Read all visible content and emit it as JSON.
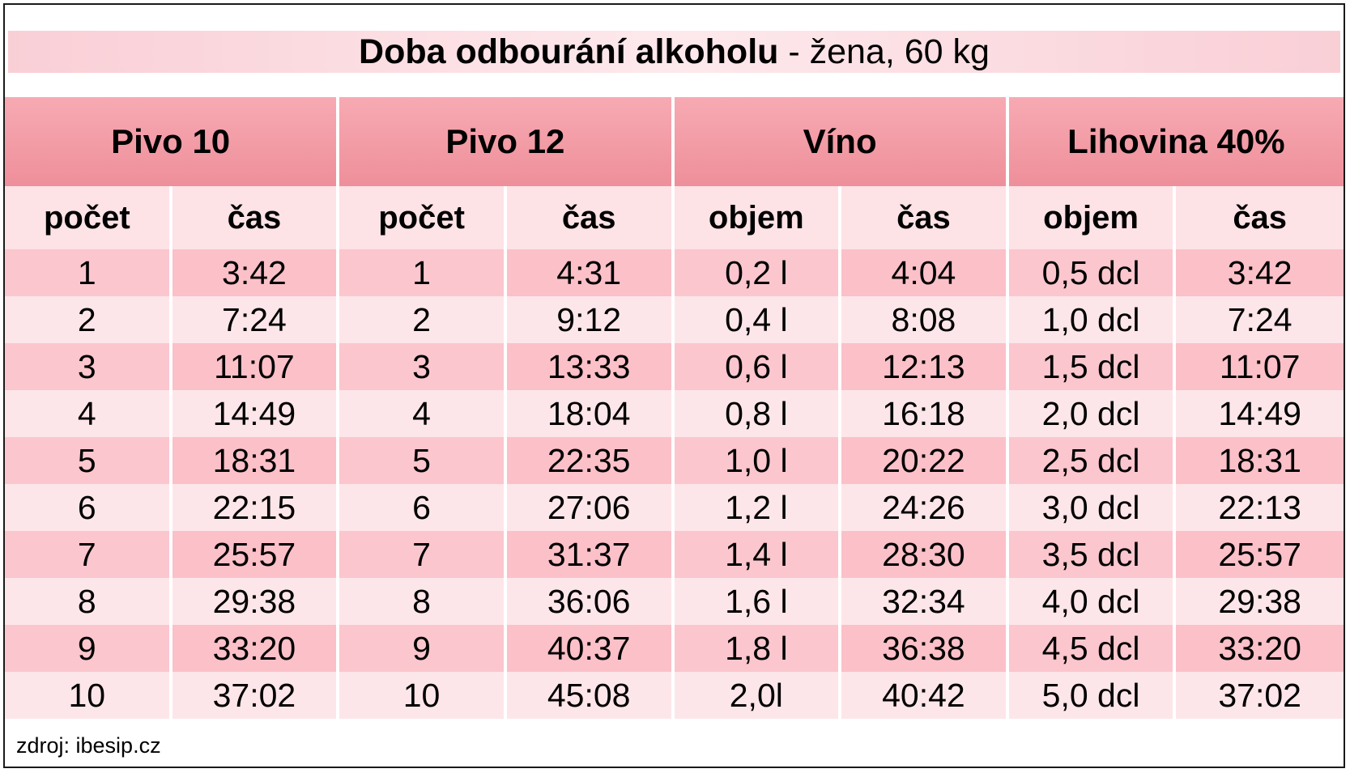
{
  "chart_data": {
    "type": "table",
    "title_bold": "Doba odbourání alkoholu",
    "title_rest": " - žena, 60 kg",
    "groups": [
      "Pivo 10",
      "Pivo 12",
      "Víno",
      "Lihovina 40%"
    ],
    "subheaders": [
      "počet",
      "čas",
      "počet",
      "čas",
      "objem",
      "čas",
      "objem",
      "čas"
    ],
    "rows": [
      [
        "1",
        "3:42",
        "1",
        "4:31",
        "0,2 l",
        "4:04",
        "0,5 dcl",
        "3:42"
      ],
      [
        "2",
        "7:24",
        "2",
        "9:12",
        "0,4 l",
        "8:08",
        "1,0 dcl",
        "7:24"
      ],
      [
        "3",
        "11:07",
        "3",
        "13:33",
        "0,6 l",
        "12:13",
        "1,5 dcl",
        "11:07"
      ],
      [
        "4",
        "14:49",
        "4",
        "18:04",
        "0,8 l",
        "16:18",
        "2,0 dcl",
        "14:49"
      ],
      [
        "5",
        "18:31",
        "5",
        "22:35",
        "1,0 l",
        "20:22",
        "2,5 dcl",
        "18:31"
      ],
      [
        "6",
        "22:15",
        "6",
        "27:06",
        "1,2 l",
        "24:26",
        "3,0 dcl",
        "22:13"
      ],
      [
        "7",
        "25:57",
        "7",
        "31:37",
        "1,4 l",
        "28:30",
        "3,5 dcl",
        "25:57"
      ],
      [
        "8",
        "29:38",
        "8",
        "36:06",
        "1,6 l",
        "32:34",
        "4,0 dcl",
        "29:38"
      ],
      [
        "9",
        "33:20",
        "9",
        "40:37",
        "1,8 l",
        "36:38",
        "4,5 dcl",
        "33:20"
      ],
      [
        "10",
        "37:02",
        "10",
        "45:08",
        "2,0l",
        "40:42",
        "5,0 dcl",
        "37:02"
      ]
    ],
    "colors": {
      "header": "#f29aa4",
      "odd_row": "#fbc6cd",
      "even_row": "#fde6e9",
      "title_band": "#fbdce1"
    }
  },
  "source": "zdroj: ibesip.cz"
}
